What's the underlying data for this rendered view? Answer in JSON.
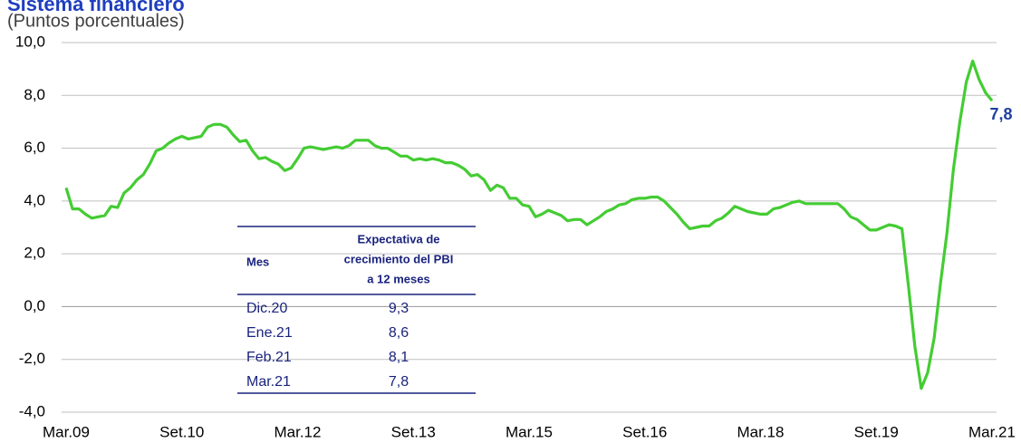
{
  "chart_data": {
    "type": "line",
    "title": "Sistema financiero",
    "subtitle": "(Puntos porcentuales)",
    "color": "#44cc33",
    "ylim": [
      -4,
      10
    ],
    "yticks": [
      {
        "value": -4,
        "label": "-4,0"
      },
      {
        "value": -2,
        "label": "-2,0"
      },
      {
        "value": 0,
        "label": "0,0"
      },
      {
        "value": 2,
        "label": "2,0"
      },
      {
        "value": 4,
        "label": "4,0"
      },
      {
        "value": 6,
        "label": "6,0"
      },
      {
        "value": 8,
        "label": "8,0"
      },
      {
        "value": 10,
        "label": "10,0"
      }
    ],
    "grid": true,
    "categories": [
      "Mar.09",
      null,
      null,
      null,
      null,
      null,
      null,
      null,
      null,
      null,
      null,
      null,
      null,
      null,
      null,
      null,
      null,
      null,
      "Set.10",
      null,
      null,
      null,
      null,
      null,
      null,
      null,
      null,
      null,
      null,
      null,
      null,
      null,
      null,
      null,
      null,
      null,
      "Mar.12",
      null,
      null,
      null,
      null,
      null,
      null,
      null,
      null,
      null,
      null,
      null,
      null,
      null,
      null,
      null,
      null,
      null,
      "Set.13",
      null,
      null,
      null,
      null,
      null,
      null,
      null,
      null,
      null,
      null,
      null,
      null,
      null,
      null,
      null,
      null,
      null,
      "Mar.15",
      null,
      null,
      null,
      null,
      null,
      null,
      null,
      null,
      null,
      null,
      null,
      null,
      null,
      null,
      null,
      null,
      null,
      "Set.16",
      null,
      null,
      null,
      null,
      null,
      null,
      null,
      null,
      null,
      null,
      null,
      null,
      null,
      null,
      null,
      null,
      null,
      "Mar.18",
      null,
      null,
      null,
      null,
      null,
      null,
      null,
      null,
      null,
      null,
      null,
      null,
      null,
      null,
      null,
      null,
      null,
      "Set.19",
      null,
      null,
      null,
      null,
      null,
      null,
      null,
      null,
      null,
      null,
      null,
      null,
      null,
      null,
      null,
      null,
      null,
      "Mar.21"
    ],
    "values": [
      4.5,
      3.7,
      3.7,
      3.5,
      3.35,
      3.4,
      3.45,
      3.8,
      3.75,
      4.3,
      4.5,
      4.8,
      5.0,
      5.4,
      5.9,
      6.0,
      6.2,
      6.35,
      6.45,
      6.35,
      6.4,
      6.45,
      6.8,
      6.9,
      6.9,
      6.8,
      6.5,
      6.25,
      6.3,
      5.9,
      5.6,
      5.65,
      5.5,
      5.4,
      5.15,
      5.25,
      5.6,
      6.0,
      6.05,
      6.0,
      5.95,
      6.0,
      6.05,
      6.0,
      6.1,
      6.3,
      6.3,
      6.3,
      6.1,
      6.0,
      6.0,
      5.85,
      5.7,
      5.7,
      5.55,
      5.6,
      5.55,
      5.6,
      5.55,
      5.45,
      5.45,
      5.35,
      5.2,
      4.95,
      5.0,
      4.8,
      4.4,
      4.6,
      4.5,
      4.1,
      4.1,
      3.85,
      3.8,
      3.4,
      3.5,
      3.65,
      3.55,
      3.45,
      3.25,
      3.3,
      3.3,
      3.1,
      3.25,
      3.4,
      3.6,
      3.7,
      3.85,
      3.9,
      4.05,
      4.1,
      4.1,
      4.15,
      4.15,
      4.0,
      3.75,
      3.5,
      3.2,
      2.95,
      3.0,
      3.05,
      3.05,
      3.25,
      3.35,
      3.55,
      3.8,
      3.7,
      3.6,
      3.55,
      3.5,
      3.5,
      3.7,
      3.75,
      3.85,
      3.95,
      4.0,
      3.9,
      3.9,
      3.9,
      3.9,
      3.9,
      3.9,
      3.7,
      3.4,
      3.3,
      3.1,
      2.9,
      2.9,
      3.0,
      3.1,
      3.05,
      2.95,
      0.8,
      -1.5,
      -3.1,
      -2.5,
      -1.2,
      0.9,
      2.8,
      5.2,
      7.0,
      8.5,
      9.3,
      8.6,
      8.1,
      7.8
    ],
    "value_labels": [
      null,
      null,
      null,
      null,
      null,
      null,
      null,
      null,
      null,
      null,
      null,
      null,
      null,
      null,
      null,
      null,
      null,
      null,
      null,
      null,
      null,
      null,
      null,
      null,
      null,
      null,
      null,
      null,
      null,
      null,
      null,
      null,
      null,
      null,
      null,
      null,
      null,
      null,
      null,
      null,
      null,
      null,
      null,
      null,
      null,
      null,
      null,
      null,
      null,
      null,
      null,
      null,
      null,
      null,
      null,
      null,
      null,
      null,
      null,
      null,
      null,
      null,
      null,
      null,
      null,
      null,
      null,
      null,
      null,
      null,
      null,
      null,
      null,
      null,
      null,
      null,
      null,
      null,
      null,
      null,
      null,
      null,
      null,
      null,
      null,
      null,
      null,
      null,
      null,
      null,
      null,
      null,
      null,
      null,
      null,
      null,
      null,
      null,
      null,
      null,
      null,
      null,
      null,
      null,
      null,
      null,
      null,
      null,
      null,
      null,
      null,
      null,
      null,
      null,
      null,
      null,
      null,
      null,
      null,
      null,
      null,
      null,
      null,
      null,
      null,
      null,
      null,
      null,
      null,
      null,
      null,
      null,
      null,
      null,
      null,
      null,
      null,
      null,
      null,
      null,
      null,
      null,
      null,
      null,
      "7,8"
    ],
    "table": {
      "header": [
        "Mes",
        [
          "Expectativa de",
          "crecimiento del PBI",
          "a 12 meses"
        ]
      ],
      "rows": [
        [
          "Dic.20",
          "9,3"
        ],
        [
          "Ene.21",
          "8,6"
        ],
        [
          "Feb.21",
          "8,1"
        ],
        [
          "Mar.21",
          "7,8"
        ]
      ]
    }
  }
}
